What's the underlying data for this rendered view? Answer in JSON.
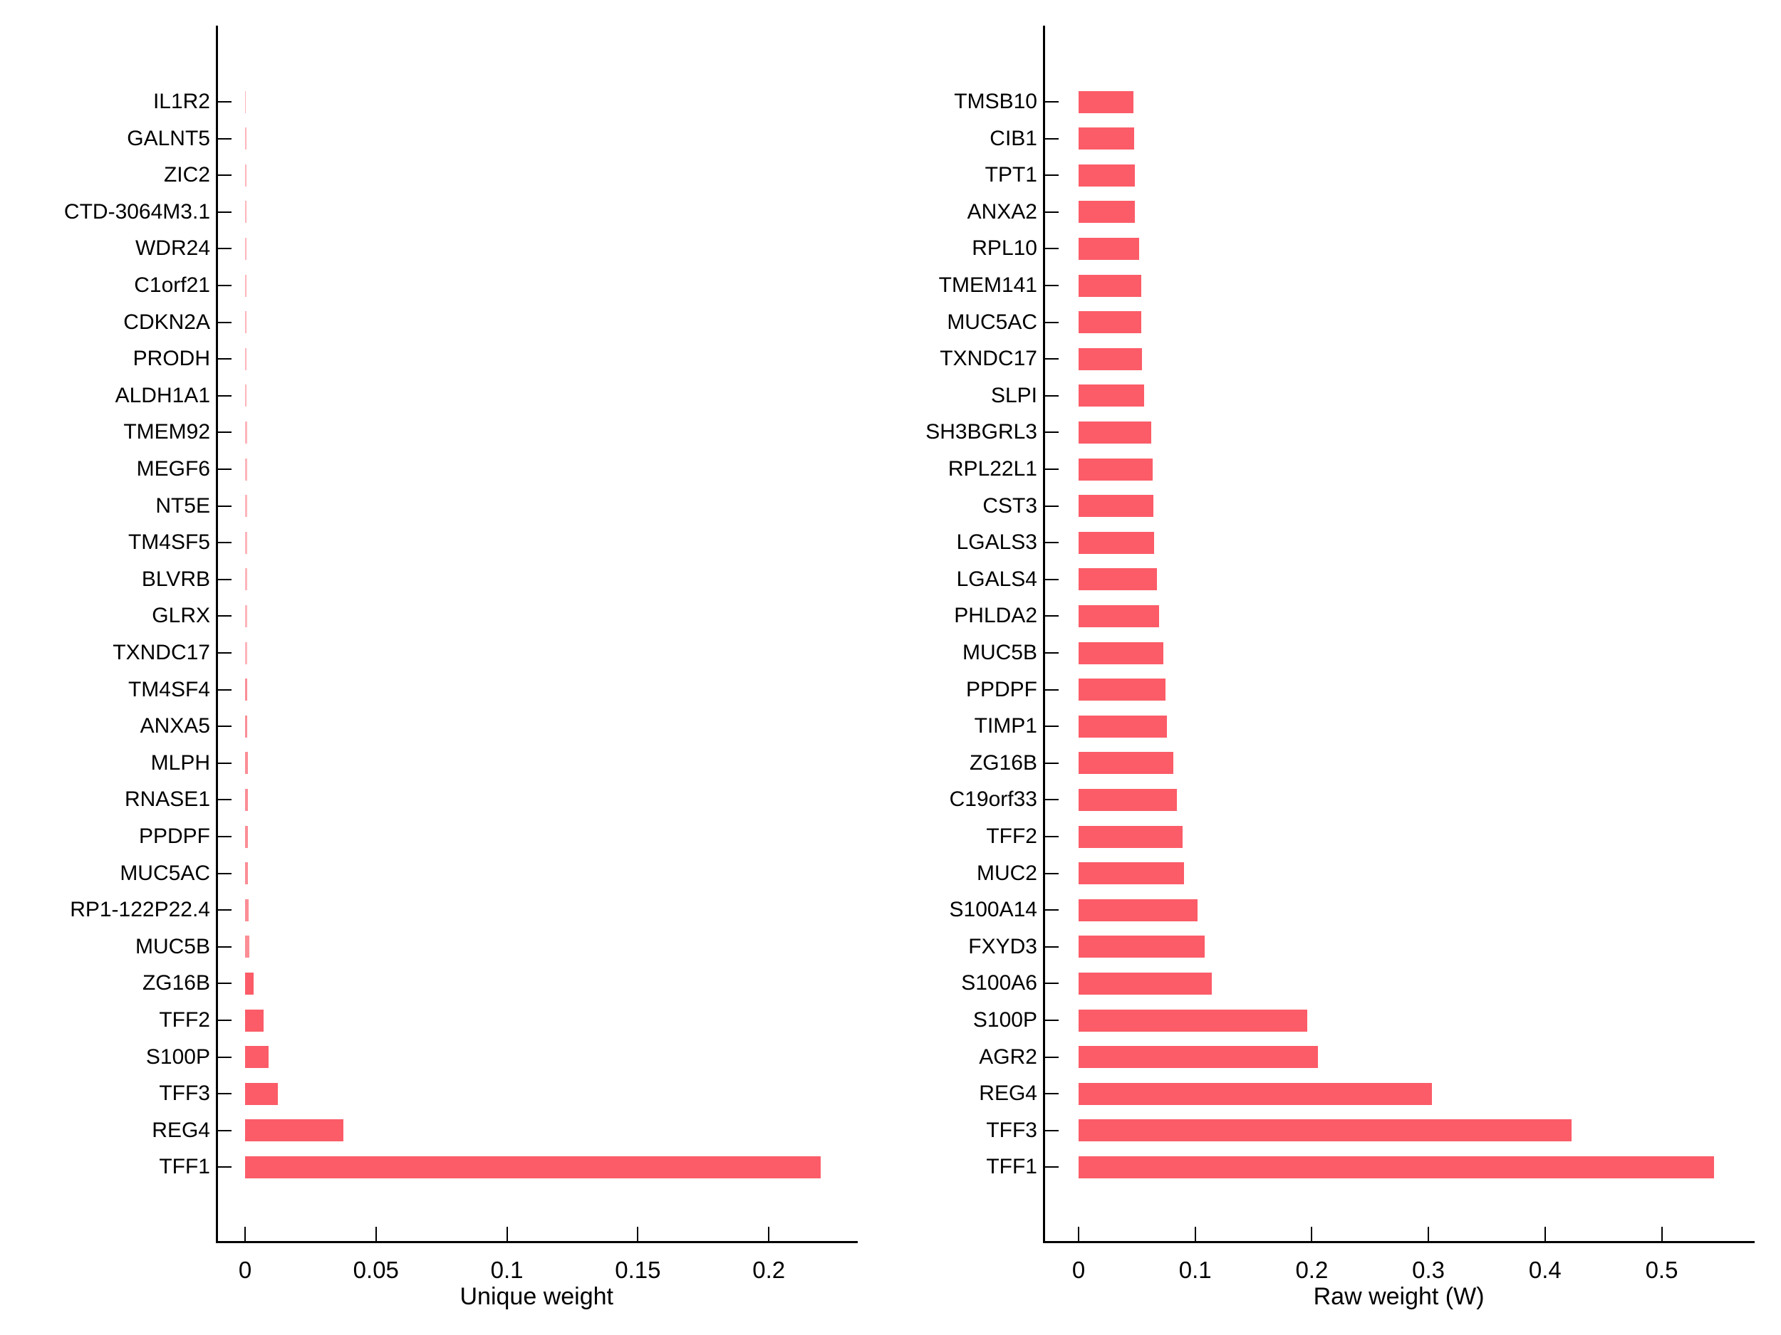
{
  "figure": {
    "bar_color": "#fb5c68",
    "axis_color": "#000000",
    "background": "#ffffff"
  },
  "chart_data": [
    {
      "type": "bar",
      "orientation": "horizontal",
      "title": "",
      "xlabel": "Unique weight",
      "ylabel": "",
      "grid": false,
      "legend": null,
      "xlim": [
        0,
        0.233
      ],
      "xticks": [
        0,
        0.05,
        0.1,
        0.15,
        0.2
      ],
      "xtick_labels": [
        "0",
        "0.05",
        "0.1",
        "0.15",
        "0.2"
      ],
      "categories": [
        "IL1R2",
        "GALNT5",
        "ZIC2",
        "CTD-3064M3.1",
        "WDR24",
        "C1orf21",
        "CDKN2A",
        "PRODH",
        "ALDH1A1",
        "TMEM92",
        "MEGF6",
        "NT5E",
        "TM4SF5",
        "BLVRB",
        "GLRX",
        "TXNDC17",
        "TM4SF4",
        "ANXA5",
        "MLPH",
        "RNASE1",
        "PPDPF",
        "MUC5AC",
        "RP1-122P22.4",
        "MUC5B",
        "ZG16B",
        "TFF2",
        "S100P",
        "TFF3",
        "REG4",
        "TFF1"
      ],
      "values": [
        0.0004,
        0.0005,
        0.0005,
        0.0005,
        0.0005,
        0.0006,
        0.0006,
        0.0006,
        0.0006,
        0.0007,
        0.0007,
        0.0007,
        0.0008,
        0.0008,
        0.0008,
        0.0008,
        0.0009,
        0.0009,
        0.001,
        0.001,
        0.0011,
        0.0012,
        0.0013,
        0.0015,
        0.0032,
        0.0072,
        0.0091,
        0.0124,
        0.0376,
        0.2198
      ]
    },
    {
      "type": "bar",
      "orientation": "horizontal",
      "title": "",
      "xlabel": "Raw weight (W)",
      "ylabel": "",
      "grid": false,
      "legend": null,
      "xlim": [
        0,
        0.578
      ],
      "xticks": [
        0,
        0.1,
        0.2,
        0.3,
        0.4,
        0.5
      ],
      "xtick_labels": [
        "0",
        "0.1",
        "0.2",
        "0.3",
        "0.4",
        "0.5"
      ],
      "categories": [
        "TMSB10",
        "CIB1",
        "TPT1",
        "ANXA2",
        "RPL10",
        "TMEM141",
        "MUC5AC",
        "TXNDC17",
        "SLPI",
        "SH3BGRL3",
        "RPL22L1",
        "CST3",
        "LGALS3",
        "LGALS4",
        "PHLDA2",
        "MUC5B",
        "PPDPF",
        "TIMP1",
        "ZG16B",
        "C19orf33",
        "TFF2",
        "MUC2",
        "S100A14",
        "FXYD3",
        "S100A6",
        "S100P",
        "AGR2",
        "REG4",
        "TFF3",
        "TFF1"
      ],
      "values": [
        0.047,
        0.0475,
        0.048,
        0.0485,
        0.052,
        0.0535,
        0.054,
        0.0545,
        0.056,
        0.0625,
        0.0635,
        0.064,
        0.065,
        0.067,
        0.069,
        0.0725,
        0.0745,
        0.0755,
        0.081,
        0.0845,
        0.089,
        0.0905,
        0.102,
        0.108,
        0.114,
        0.196,
        0.205,
        0.303,
        0.423,
        0.545
      ]
    }
  ]
}
